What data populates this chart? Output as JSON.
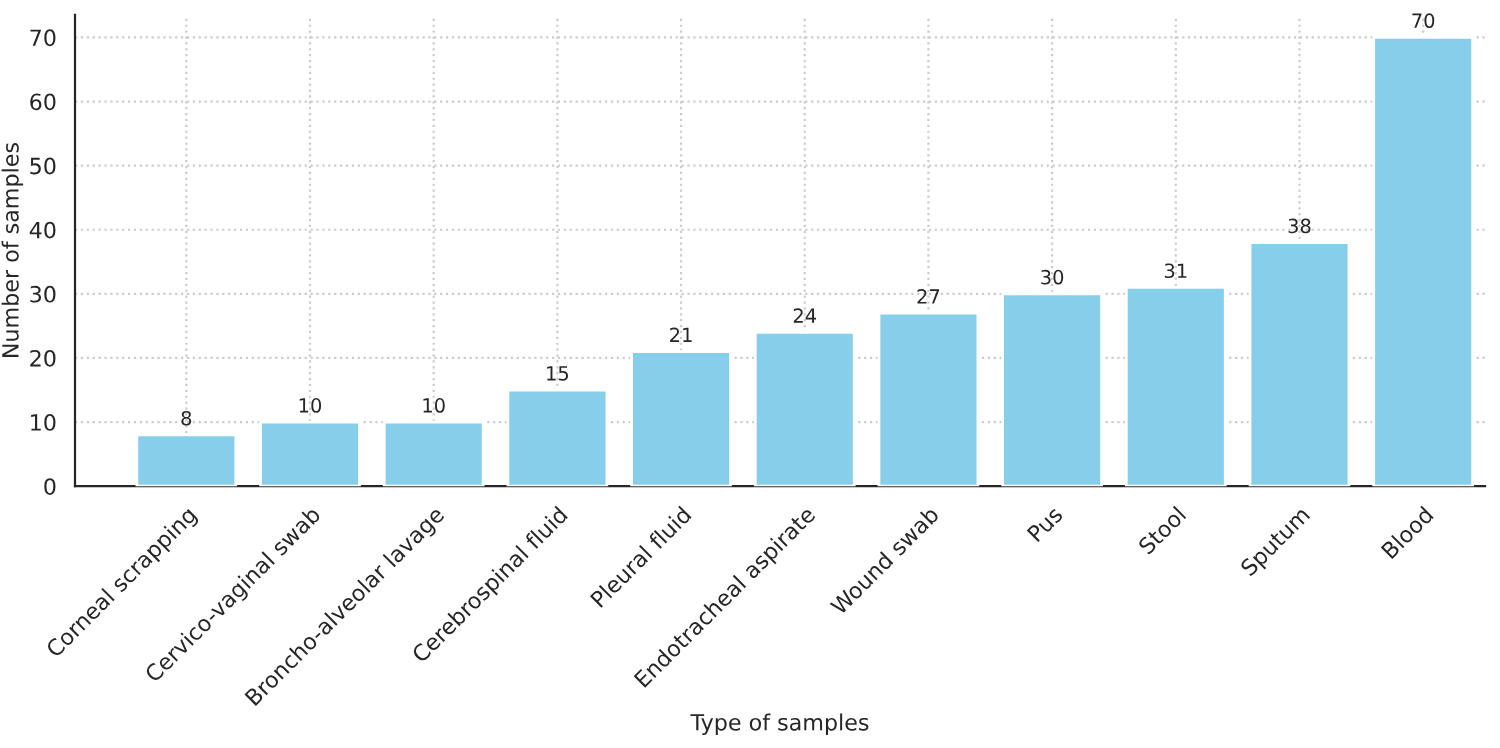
{
  "chart_data": {
    "type": "bar",
    "xlabel": "Type of samples",
    "ylabel": "Number of samples",
    "categories": [
      "Corneal scrapping",
      "Cervico-vaginal swab",
      "Broncho-alveolar lavage",
      "Cerebrospinal fluid",
      "Pleural fluid",
      "Endotracheal aspirate",
      "Wound swab",
      "Pus",
      "Stool",
      "Sputum",
      "Blood"
    ],
    "values": [
      8,
      10,
      10,
      15,
      21,
      24,
      27,
      30,
      31,
      38,
      70
    ],
    "color": "#87ceeb",
    "ylim": [
      0,
      73.5
    ],
    "yticks": [
      0,
      10,
      20,
      30,
      40,
      50,
      60,
      70
    ],
    "grid": true,
    "data_labels": true
  }
}
